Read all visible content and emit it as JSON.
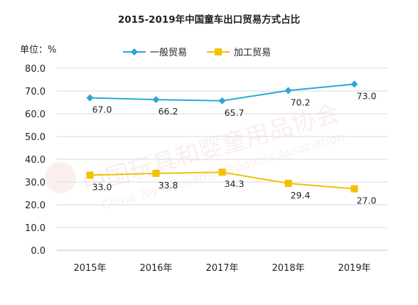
{
  "chart_data": {
    "type": "line",
    "title": "2015-2019年中国童车出口贸易方式占比",
    "unit_label": "单位：%",
    "categories": [
      "2015年",
      "2016年",
      "2017年",
      "2018年",
      "2019年"
    ],
    "series": [
      {
        "name": "一般贸易",
        "color": "#2aa7d8",
        "marker": "diamond",
        "values": [
          67.0,
          66.2,
          65.7,
          70.2,
          73.0
        ]
      },
      {
        "name": "加工贸易",
        "color": "#f2c200",
        "marker": "square",
        "values": [
          33.0,
          33.8,
          34.3,
          29.4,
          27.0
        ]
      }
    ],
    "ylim": [
      0,
      80
    ],
    "yticks": [
      "0.0",
      "10.0",
      "20.0",
      "30.0",
      "40.0",
      "50.0",
      "60.0",
      "70.0",
      "80.0"
    ],
    "grid": true,
    "legend_position": "top-center"
  },
  "watermark": {
    "cn": "中国玩具和婴童用品协会",
    "en": "China Toy & Juvenile Products Association",
    "color": "#c8322a"
  }
}
